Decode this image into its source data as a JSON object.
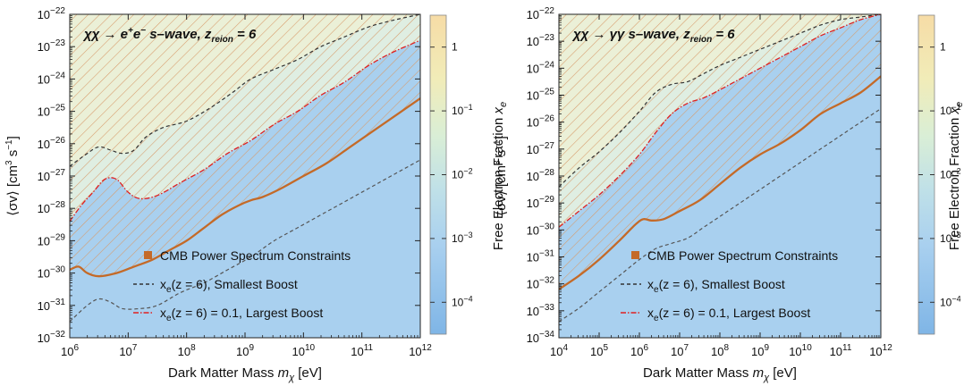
{
  "chart_data": [
    {
      "type": "line",
      "title_parts": [
        "χχ → e",
        "+",
        "e",
        "−",
        " s–wave, z",
        "reion",
        " = 6"
      ],
      "xlabel_parts": [
        "Dark Matter Mass ",
        "m",
        "χ",
        " [eV]"
      ],
      "ylabel_parts": [
        "⟨σv⟩ [cm",
        "3",
        " s",
        "−1",
        "]"
      ],
      "x_log_range": [
        6,
        12
      ],
      "y_log_range": [
        -32,
        -22
      ],
      "x_scale": "log",
      "y_scale": "log",
      "xticks": [
        6,
        7,
        8,
        9,
        10,
        11,
        12
      ],
      "yticks": [
        -32,
        -31,
        -30,
        -29,
        -28,
        -27,
        -26,
        -25,
        -24,
        -23,
        -22
      ],
      "legend_position": "lower-right",
      "legend": [
        {
          "label": "CMB Power Spectrum Constraints",
          "style": "square",
          "color": "#c46a28"
        },
        {
          "label_base": "x",
          "label_sub": "e",
          "label_rest": "(z = 6), Smallest Boost",
          "style": "dashed",
          "color": "#333333"
        },
        {
          "label_base": "x",
          "label_sub": "e",
          "label_rest": "(z = 6) = 0.1, Largest Boost",
          "style": "dashdot",
          "color": "#e02020"
        }
      ],
      "series": [
        {
          "name": "CMB Power Spectrum Constraints",
          "x_log": [
            6,
            6.15,
            6.3,
            6.5,
            6.8,
            7.1,
            7.4,
            7.7,
            8.0,
            8.3,
            8.6,
            8.9,
            9.1,
            9.3,
            9.6,
            10.0,
            10.4,
            10.8,
            11.2,
            11.6,
            12.0
          ],
          "y_log": [
            -29.9,
            -29.8,
            -30.0,
            -30.1,
            -30.0,
            -29.8,
            -29.6,
            -29.3,
            -29.0,
            -28.6,
            -28.2,
            -27.9,
            -27.75,
            -27.65,
            -27.4,
            -27.0,
            -26.6,
            -26.1,
            -25.6,
            -25.1,
            -24.6
          ]
        },
        {
          "name": "xe(z = 6), Smallest Boost",
          "x_log": [
            6,
            6.3,
            6.5,
            6.7,
            6.9,
            7.1,
            7.3,
            7.6,
            8.0,
            8.4,
            8.8,
            9.1,
            9.5,
            9.9,
            10.3,
            10.7,
            11.1,
            11.5,
            12.0
          ],
          "y_log": [
            -26.7,
            -26.3,
            -26.1,
            -26.2,
            -26.3,
            -26.2,
            -25.8,
            -25.5,
            -25.3,
            -24.9,
            -24.4,
            -24.0,
            -23.7,
            -23.4,
            -23.0,
            -22.7,
            -22.4,
            -22.2,
            -22.0
          ]
        },
        {
          "name": "xe(z = 6), Smallest Boost lower",
          "x_log": [
            6,
            6.3,
            6.5,
            6.7,
            6.9,
            7.2,
            7.5,
            7.9,
            8.3,
            8.7,
            9.1,
            9.5,
            9.9,
            10.3,
            10.7,
            11.1,
            11.5,
            12.0
          ],
          "y_log": [
            -31.5,
            -31.0,
            -30.8,
            -30.9,
            -31.1,
            -31.1,
            -31.0,
            -30.6,
            -30.3,
            -29.9,
            -29.5,
            -29.0,
            -28.6,
            -28.2,
            -27.8,
            -27.4,
            -27.0,
            -26.5
          ]
        },
        {
          "name": "xe(z = 6) = 0.1, Largest Boost",
          "x_log": [
            6,
            6.2,
            6.4,
            6.6,
            6.8,
            7.0,
            7.2,
            7.5,
            7.9,
            8.3,
            8.7,
            9.1,
            9.5,
            9.9,
            10.3,
            10.7,
            11.1,
            11.5,
            12.0
          ],
          "y_log": [
            -28.4,
            -27.9,
            -27.5,
            -27.1,
            -27.1,
            -27.5,
            -27.7,
            -27.6,
            -27.2,
            -26.8,
            -26.3,
            -25.9,
            -25.4,
            -25.0,
            -24.5,
            -24.1,
            -23.6,
            -23.2,
            -22.8
          ]
        }
      ],
      "colorbar": {
        "label_parts": [
          "Free Electron Fraction ",
          "x",
          "e"
        ],
        "log_range": [
          -4.5,
          0.5
        ],
        "ticks": [
          {
            "base": "10",
            "exp": "−4",
            "log": -4
          },
          {
            "base": "10",
            "exp": "−3",
            "log": -3
          },
          {
            "base": "10",
            "exp": "−2",
            "log": -2
          },
          {
            "base": "10",
            "exp": "−1",
            "log": -1
          },
          {
            "base": "1",
            "exp": "",
            "log": 0
          }
        ]
      }
    },
    {
      "type": "line",
      "title_parts": [
        "χχ → γγ s–wave, z",
        "reion",
        " = 6"
      ],
      "xlabel_parts": [
        "Dark Matter Mass ",
        "m",
        "χ",
        " [eV]"
      ],
      "ylabel_parts": [
        "⟨σv⟩ [cm",
        "3",
        " s",
        "−1",
        "]"
      ],
      "x_log_range": [
        4,
        12
      ],
      "y_log_range": [
        -34,
        -22
      ],
      "x_scale": "log",
      "y_scale": "log",
      "xticks": [
        4,
        5,
        6,
        7,
        8,
        9,
        10,
        11,
        12
      ],
      "yticks": [
        -34,
        -33,
        -32,
        -31,
        -30,
        -29,
        -28,
        -27,
        -26,
        -25,
        -24,
        -23,
        -22
      ],
      "legend_position": "lower-right",
      "legend": [
        {
          "label": "CMB Power Spectrum Constraints",
          "style": "square",
          "color": "#c46a28"
        },
        {
          "label_base": "x",
          "label_sub": "e",
          "label_rest": "(z = 6), Smallest Boost",
          "style": "dashed",
          "color": "#333333"
        },
        {
          "label_base": "x",
          "label_sub": "e",
          "label_rest": "(z = 6) = 0.1, Largest Boost",
          "style": "dashdot",
          "color": "#e02020"
        }
      ],
      "series": [
        {
          "name": "CMB Power Spectrum Constraints",
          "x_log": [
            4,
            4.5,
            5,
            5.5,
            5.9,
            6.1,
            6.3,
            6.6,
            7.0,
            7.5,
            8.0,
            8.5,
            9.0,
            9.5,
            10.0,
            10.5,
            11.0,
            11.5,
            12.0
          ],
          "y_log": [
            -32.2,
            -31.7,
            -31.1,
            -30.4,
            -29.8,
            -29.6,
            -29.65,
            -29.6,
            -29.3,
            -28.9,
            -28.3,
            -27.7,
            -27.2,
            -26.8,
            -26.3,
            -25.7,
            -25.3,
            -24.9,
            -24.3
          ]
        },
        {
          "name": "xe(z = 6), Smallest Boost",
          "x_log": [
            4,
            4.5,
            5,
            5.5,
            6.0,
            6.4,
            6.8,
            7.2,
            7.6,
            8.0,
            8.5,
            9.0,
            9.5,
            10.0,
            10.5,
            11.0,
            11.5,
            12.0
          ],
          "y_log": [
            -28.4,
            -27.7,
            -27.1,
            -26.4,
            -25.6,
            -24.9,
            -24.6,
            -24.5,
            -24.2,
            -23.9,
            -23.6,
            -23.3,
            -23.0,
            -22.7,
            -22.4,
            -22.2,
            -22.1,
            -22.0
          ]
        },
        {
          "name": "xe(z = 6), Smallest Boost lower",
          "x_log": [
            4,
            4.5,
            5,
            5.5,
            6.0,
            6.4,
            6.8,
            7.2,
            7.6,
            8.0,
            8.5,
            9.0,
            9.5,
            10.0,
            10.5,
            11.0,
            11.5,
            12.0
          ],
          "y_log": [
            -33.4,
            -32.9,
            -32.3,
            -31.7,
            -31.1,
            -30.7,
            -30.5,
            -30.3,
            -29.9,
            -29.5,
            -29.0,
            -28.5,
            -28.0,
            -27.5,
            -27.0,
            -26.5,
            -26.0,
            -25.5
          ]
        },
        {
          "name": "xe(z = 6) = 0.1, Largest Boost",
          "x_log": [
            4,
            4.5,
            5,
            5.5,
            6.0,
            6.4,
            6.8,
            7.2,
            7.6,
            8.0,
            8.5,
            9.0,
            9.5,
            10.0,
            10.5,
            11.0,
            11.5,
            12.0
          ],
          "y_log": [
            -29.9,
            -29.3,
            -28.7,
            -28.0,
            -27.2,
            -26.4,
            -25.7,
            -25.3,
            -25.1,
            -24.8,
            -24.4,
            -24.0,
            -23.6,
            -23.2,
            -22.8,
            -22.5,
            -22.2,
            -22.0
          ]
        }
      ],
      "colorbar": {
        "label_parts": [
          "Free Electron Fraction ",
          "x",
          "e"
        ],
        "log_range": [
          -4.5,
          0.5
        ],
        "ticks": [
          {
            "base": "10",
            "exp": "−4",
            "log": -4
          },
          {
            "base": "10",
            "exp": "−3",
            "log": -3
          },
          {
            "base": "10",
            "exp": "−2",
            "log": -2
          },
          {
            "base": "10",
            "exp": "−1",
            "log": -1
          },
          {
            "base": "1",
            "exp": "",
            "log": 0
          }
        ]
      }
    }
  ],
  "colors": {
    "background_low": "#a9d0ef",
    "background_high": "#f6dca6",
    "constraint": "#c46a28",
    "hatch": "#d79a6a",
    "smallest_boost": "#333333",
    "largest_boost": "#e02020"
  }
}
